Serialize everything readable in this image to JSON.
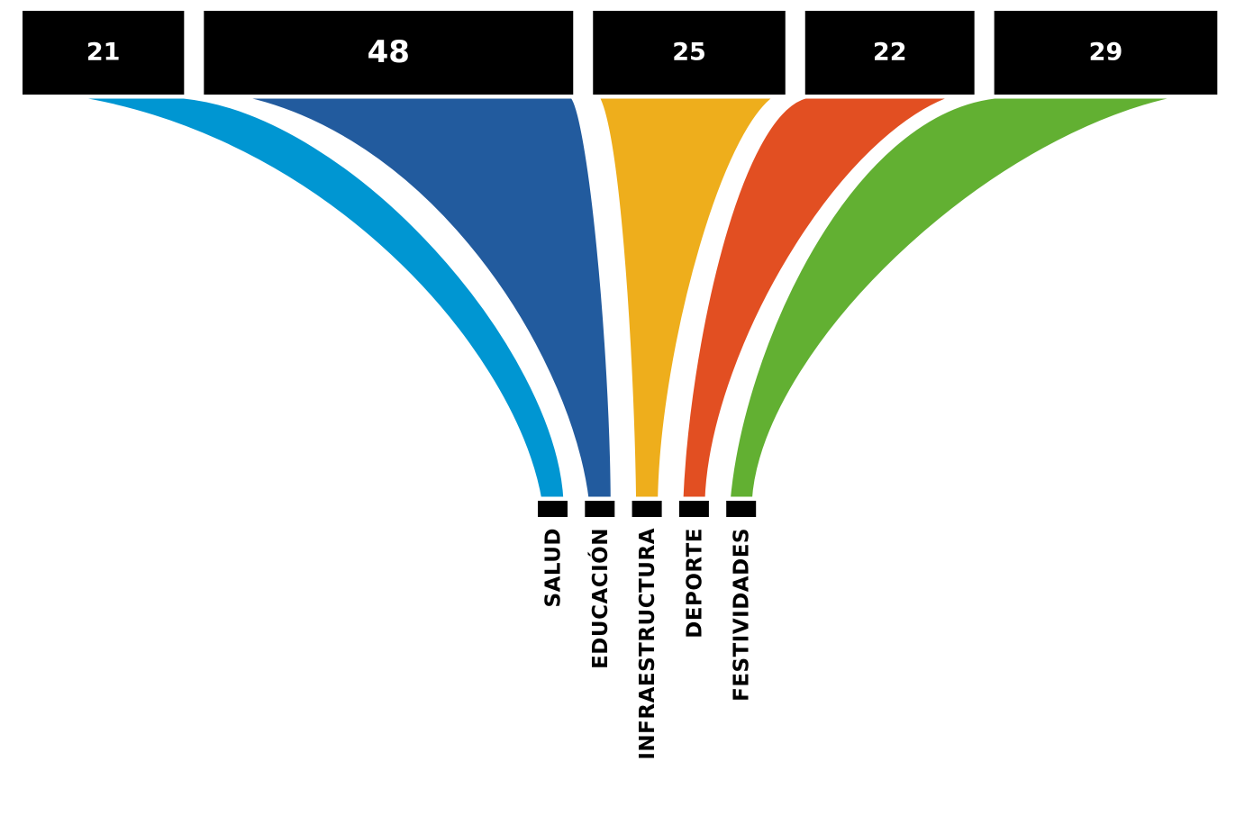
{
  "chart_data": {
    "type": "sankey",
    "title": "",
    "categories": [
      "SALUD",
      "EDUCACIÓN",
      "INFRAESTRUCTURA",
      "DEPORTE",
      "FESTIVIDADES"
    ],
    "values": [
      21,
      48,
      25,
      22,
      29
    ],
    "value_labels": [
      "21",
      "48",
      "25",
      "22",
      "29"
    ],
    "colors": [
      "#0096d2",
      "#225b9e",
      "#eeae1c",
      "#e24f22",
      "#62b032"
    ],
    "legend": "none",
    "grid": false
  }
}
